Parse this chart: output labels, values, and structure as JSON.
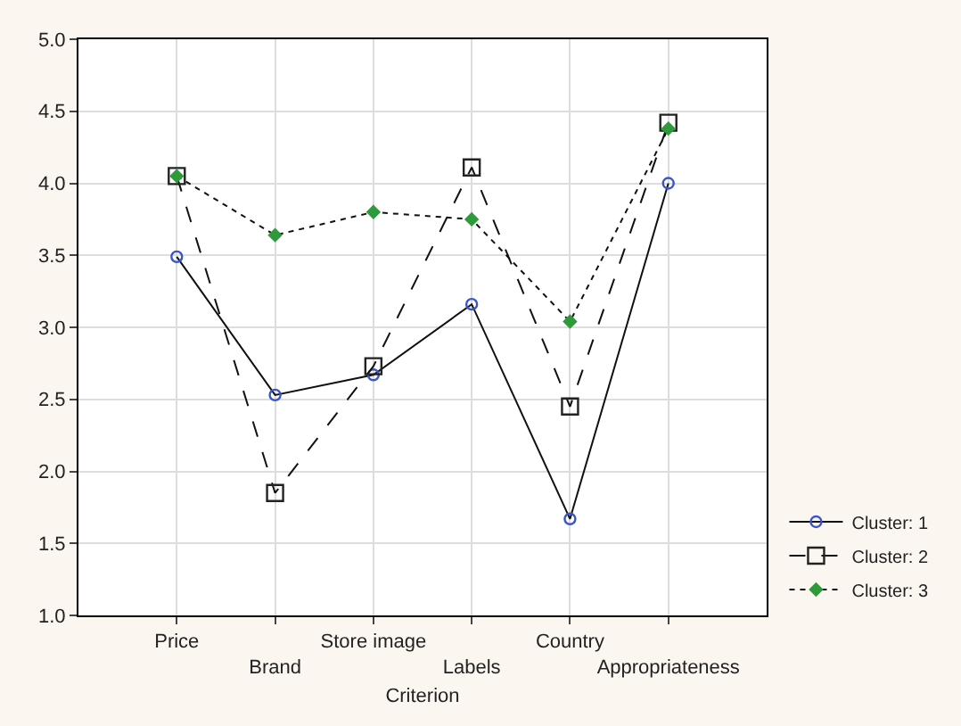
{
  "chart_data": {
    "type": "line",
    "xlabel": "Criterion",
    "categories": [
      "Price",
      "Brand",
      "Store image",
      "Labels",
      "Country",
      "Appropriateness"
    ],
    "series": [
      {
        "name": "Cluster: 1",
        "color": "#3a55c8",
        "marker": "circle",
        "line_style": "solid",
        "values": [
          3.49,
          2.53,
          2.67,
          3.16,
          1.67,
          4.0
        ]
      },
      {
        "name": "Cluster: 2",
        "color": "#222222",
        "marker": "square",
        "line_style": "dashed",
        "values": [
          4.05,
          1.85,
          2.73,
          4.11,
          2.45,
          4.42
        ]
      },
      {
        "name": "Cluster: 3",
        "color": "#2e9a3a",
        "marker": "diamond",
        "line_style": "dotted",
        "values": [
          4.05,
          3.64,
          3.8,
          3.75,
          3.04,
          4.38
        ]
      }
    ],
    "ylim": [
      1.0,
      5.0
    ],
    "yticks": [
      {
        "value": 1,
        "label": "1.0"
      },
      {
        "value": 1.5,
        "label": "1.5"
      },
      {
        "value": 2,
        "label": "2.0"
      },
      {
        "value": 2.5,
        "label": "2.5"
      },
      {
        "value": 3,
        "label": "3.0"
      },
      {
        "value": 3.5,
        "label": "3.5"
      },
      {
        "value": 4,
        "label": "4.0"
      },
      {
        "value": 4.5,
        "label": "4.5"
      },
      {
        "value": 5,
        "label": "5.0"
      }
    ],
    "grid": true,
    "legend": "bottom right"
  }
}
